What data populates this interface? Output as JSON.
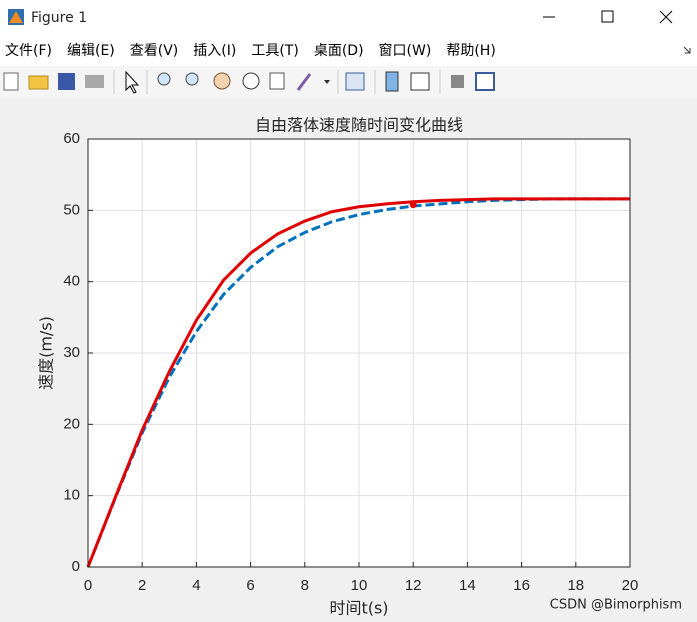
{
  "window": {
    "title": "Figure 1"
  },
  "menu": [
    "文件(F)",
    "编辑(E)",
    "查看(V)",
    "插入(I)",
    "工具(T)",
    "桌面(D)",
    "窗口(W)",
    "帮助(H)"
  ],
  "chart_data": {
    "type": "line",
    "title": "自由落体速度随时间变化曲线",
    "x_label": "时间t(s)",
    "y_label": "速度(m/s)",
    "x": [
      0,
      1,
      2,
      3,
      4,
      5,
      6,
      7,
      8,
      9,
      10,
      11,
      12,
      13,
      14,
      15,
      16,
      17,
      18,
      19,
      20
    ],
    "series": [
      {
        "color": "#0072bd",
        "style": "dashed",
        "values": [
          0,
          9.6,
          18.8,
          26.6,
          33.0,
          38.2,
          42.0,
          44.9,
          46.9,
          48.4,
          49.4,
          50.1,
          50.6,
          50.9,
          51.2,
          51.4,
          51.5,
          51.6,
          51.6,
          51.6,
          51.6
        ]
      },
      {
        "color": "#e00000",
        "style": "solid",
        "values": [
          0,
          9.7,
          19.2,
          27.4,
          34.6,
          40.2,
          44.0,
          46.7,
          48.5,
          49.8,
          50.5,
          50.9,
          51.2,
          51.4,
          51.5,
          51.6,
          51.6,
          51.6,
          51.6,
          51.6,
          51.6
        ]
      }
    ],
    "markers": [
      {
        "x": 12,
        "y": 50.8,
        "color": "#e00000"
      }
    ],
    "xlim": [
      0,
      20
    ],
    "xticks": [
      0,
      2,
      4,
      6,
      8,
      10,
      12,
      14,
      16,
      18,
      20
    ],
    "ylim": [
      0,
      60
    ],
    "yticks": [
      0,
      10,
      20,
      30,
      40,
      50,
      60
    ],
    "grid": true
  },
  "watermark": "CSDN @Bimorphism"
}
